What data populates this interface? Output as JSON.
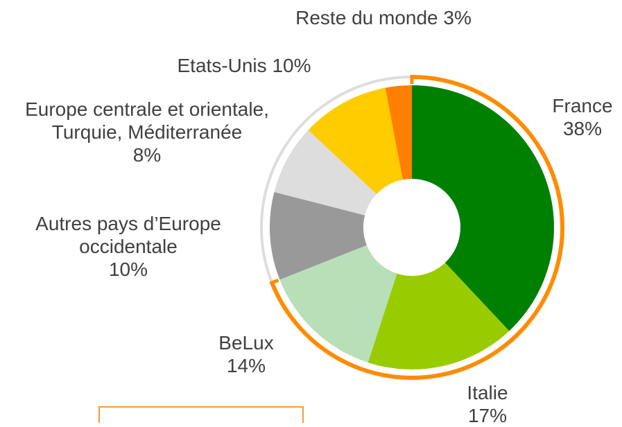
{
  "chart_data": {
    "type": "donut",
    "categories": [
      "France",
      "Italie",
      "BeLux",
      "Autres pays d’Europe occidentale",
      "Europe centrale et orientale, Turquie, Méditerranée",
      "Etats-Unis",
      "Reste du monde"
    ],
    "values": [
      38,
      17,
      14,
      10,
      8,
      10,
      3
    ],
    "value_labels": [
      "38%",
      "17%",
      "14%",
      "10%",
      "8%",
      "10%",
      "3%"
    ],
    "colors": [
      "#008000",
      "#99cc00",
      "#b9dfb9",
      "#999999",
      "#dddddd",
      "#ffcc00",
      "#ff8000"
    ]
  }
}
